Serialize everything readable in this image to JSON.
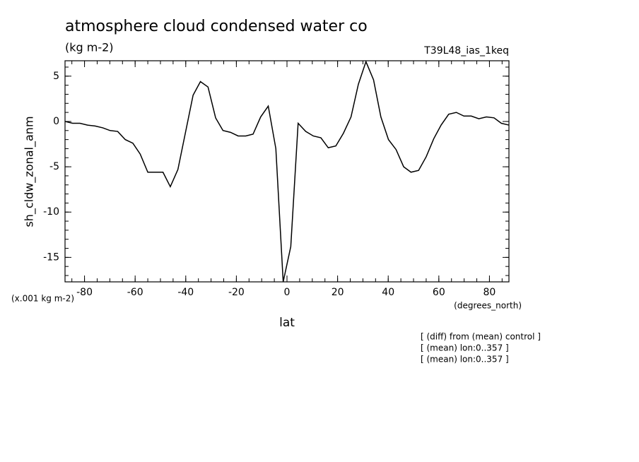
{
  "chart_data": {
    "type": "line",
    "title": "atmosphere cloud condensed water co",
    "subtitle": "(kg m-2)",
    "run_label": "T39L48_ias_1keq",
    "y_label": "sh_cldw_zonal_anm",
    "y_unit": "(x.001 kg m-2)",
    "x_unit": "(degrees_north)",
    "x_label": "lat",
    "notes": [
      "[ (diff) from (mean) control ]",
      "[ (mean) lon:0..357 ]",
      "[ (mean) lon:0..357 ]"
    ],
    "x": [
      -87.7,
      -84.7,
      -81.8,
      -78.8,
      -75.8,
      -72.8,
      -69.9,
      -66.9,
      -63.9,
      -60.9,
      -58.0,
      -55.0,
      -52.0,
      -49.0,
      -46.1,
      -43.1,
      -40.1,
      -37.1,
      -34.2,
      -31.2,
      -28.2,
      -25.3,
      -22.3,
      -19.3,
      -16.3,
      -13.4,
      -10.4,
      -7.4,
      -4.4,
      -1.5,
      1.5,
      4.4,
      7.4,
      10.4,
      13.4,
      16.3,
      19.3,
      22.3,
      25.3,
      28.2,
      31.2,
      34.2,
      37.1,
      40.1,
      43.1,
      46.1,
      49.0,
      52.0,
      55.0,
      58.0,
      60.9,
      63.9,
      66.9,
      69.9,
      72.8,
      75.8,
      78.8,
      81.8,
      84.7,
      87.7
    ],
    "series": [
      {
        "color": "#000000",
        "values": [
          0.0,
          -0.2,
          -0.2,
          -0.4,
          -0.5,
          -0.7,
          -1.0,
          -1.1,
          -2.0,
          -2.4,
          -3.6,
          -5.6,
          -5.6,
          -5.6,
          -7.2,
          -5.3,
          -1.2,
          2.9,
          4.4,
          3.8,
          0.4,
          -1.0,
          -1.2,
          -1.6,
          -1.6,
          -1.4,
          0.5,
          1.7,
          -3.0,
          -17.7,
          -13.8,
          -0.2,
          -1.1,
          -1.6,
          -1.8,
          -2.9,
          -2.7,
          -1.3,
          0.5,
          4.1,
          6.6,
          4.6,
          0.5,
          -2.0,
          -3.1,
          -5.0,
          -5.6,
          -5.4,
          -3.9,
          -1.9,
          -0.4,
          0.8,
          1.0,
          0.6,
          0.6,
          0.3,
          0.5,
          0.4,
          -0.2,
          -0.4
        ]
      }
    ],
    "xlim": [
      -87.7,
      87.7
    ],
    "ylim": [
      -17.7,
      6.7
    ],
    "xticks": [
      -80,
      -60,
      -40,
      -20,
      0,
      20,
      40,
      60,
      80
    ],
    "yticks": [
      -15,
      -10,
      -5,
      0,
      5
    ]
  }
}
